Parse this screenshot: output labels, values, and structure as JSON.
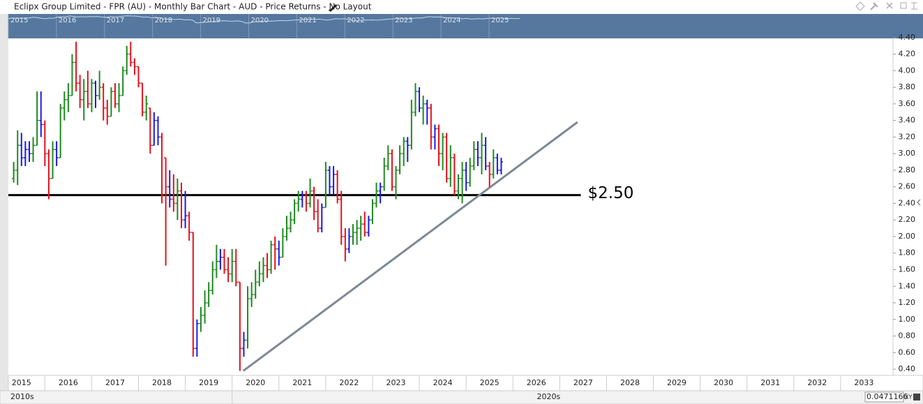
{
  "header": {
    "title": "Eclipx Group Limited - FPR (AU) - Monthly Bar Chart - AUD - Price Returns - No Layout"
  },
  "chart_data": {
    "type": "ohlc",
    "x": [
      2015.333,
      2015.417,
      2015.5,
      2015.583,
      2015.667,
      2015.75,
      2015.833,
      2015.917,
      2016,
      2016.083,
      2016.167,
      2016.25,
      2016.333,
      2016.417,
      2016.5,
      2016.583,
      2016.667,
      2016.75,
      2016.833,
      2016.917,
      2017,
      2017.083,
      2017.167,
      2017.25,
      2017.333,
      2017.417,
      2017.5,
      2017.583,
      2017.667,
      2017.75,
      2017.833,
      2017.917,
      2018,
      2018.083,
      2018.167,
      2018.25,
      2018.333,
      2018.417,
      2018.5,
      2018.583,
      2018.667,
      2018.75,
      2018.833,
      2018.917,
      2019,
      2019.083,
      2019.167,
      2019.25,
      2019.333,
      2019.417,
      2019.5,
      2019.583,
      2019.667,
      2019.75,
      2019.833,
      2019.917,
      2020,
      2020.083,
      2020.167,
      2020.25,
      2020.333,
      2020.417,
      2020.5,
      2020.583,
      2020.667,
      2020.75,
      2020.833,
      2020.917,
      2021,
      2021.083,
      2021.167,
      2021.25,
      2021.333,
      2021.417,
      2021.5,
      2021.583,
      2021.667,
      2021.75,
      2021.833,
      2021.917,
      2022,
      2022.083,
      2022.167,
      2022.25,
      2022.333,
      2022.417,
      2022.5,
      2022.583,
      2022.667,
      2022.75,
      2022.833,
      2022.917,
      2023,
      2023.083,
      2023.167,
      2023.25,
      2023.333,
      2023.417,
      2023.5,
      2023.583,
      2023.667,
      2023.75,
      2023.833,
      2023.917,
      2024,
      2024.083,
      2024.167,
      2024.25,
      2024.333,
      2024.417,
      2024.5,
      2024.583,
      2024.667,
      2024.75,
      2024.833,
      2024.917,
      2025,
      2025.083,
      2025.167,
      2025.25,
      2025.333,
      2025.417,
      2025.5,
      2025.583,
      2025.667,
      2025.75
    ],
    "ohlc": [
      [
        2.7,
        2.9,
        2.65,
        2.8
      ],
      [
        2.8,
        3.28,
        2.62,
        3.1
      ],
      [
        3.1,
        3.25,
        2.85,
        2.95
      ],
      [
        2.95,
        3.15,
        2.85,
        3.05
      ],
      [
        3.05,
        3.15,
        2.9,
        3.0
      ],
      [
        3.0,
        3.2,
        2.9,
        3.1
      ],
      [
        3.1,
        3.75,
        3.1,
        3.4
      ],
      [
        3.4,
        3.75,
        3.2,
        3.35
      ],
      [
        3.35,
        3.4,
        2.85,
        3.0
      ],
      [
        3.0,
        3.05,
        2.45,
        2.7
      ],
      [
        2.7,
        3.15,
        2.7,
        3.05
      ],
      [
        3.05,
        3.15,
        2.85,
        2.95
      ],
      [
        2.95,
        3.6,
        2.95,
        3.55
      ],
      [
        3.55,
        3.75,
        3.4,
        3.65
      ],
      [
        3.65,
        3.85,
        3.5,
        3.7
      ],
      [
        3.7,
        4.2,
        3.7,
        4.1
      ],
      [
        4.1,
        4.35,
        3.75,
        3.85
      ],
      [
        3.85,
        3.95,
        3.55,
        3.65
      ],
      [
        3.65,
        3.9,
        3.4,
        3.75
      ],
      [
        3.75,
        4.0,
        3.55,
        3.6
      ],
      [
        3.6,
        3.9,
        3.5,
        3.85
      ],
      [
        3.85,
        3.88,
        3.55,
        3.7
      ],
      [
        3.7,
        4.0,
        3.65,
        3.8
      ],
      [
        3.8,
        3.85,
        3.4,
        3.55
      ],
      [
        3.55,
        3.65,
        3.35,
        3.45
      ],
      [
        3.45,
        3.8,
        3.45,
        3.75
      ],
      [
        3.75,
        3.85,
        3.55,
        3.6
      ],
      [
        3.6,
        3.85,
        3.5,
        3.7
      ],
      [
        3.7,
        4.05,
        3.7,
        4.0
      ],
      [
        4.0,
        4.3,
        3.95,
        4.2
      ],
      [
        4.2,
        4.35,
        4.05,
        4.1
      ],
      [
        4.1,
        4.15,
        3.95,
        4.05
      ],
      [
        4.05,
        4.05,
        3.8,
        3.85
      ],
      [
        3.85,
        3.85,
        3.45,
        3.5
      ],
      [
        3.5,
        3.7,
        3.4,
        3.6
      ],
      [
        3.55,
        3.55,
        3.0,
        3.1
      ],
      [
        3.1,
        3.5,
        3.1,
        3.4
      ],
      [
        3.4,
        3.45,
        3.1,
        3.2
      ],
      [
        3.2,
        3.25,
        2.4,
        2.5
      ],
      [
        2.95,
        2.95,
        1.65,
        2.6
      ],
      [
        2.6,
        2.8,
        2.35,
        2.45
      ],
      [
        2.45,
        2.75,
        2.3,
        2.4
      ],
      [
        2.4,
        2.7,
        2.2,
        2.55
      ],
      [
        2.55,
        2.65,
        2.1,
        2.2
      ],
      [
        2.2,
        2.55,
        2.1,
        2.25
      ],
      [
        2.25,
        2.3,
        1.95,
        2.05
      ],
      [
        2.05,
        2.05,
        0.55,
        0.65
      ],
      [
        0.65,
        1.0,
        0.55,
        0.95
      ],
      [
        0.95,
        1.15,
        0.85,
        1.05
      ],
      [
        1.05,
        1.35,
        0.95,
        1.2
      ],
      [
        1.2,
        1.45,
        1.15,
        1.35
      ],
      [
        1.35,
        1.7,
        1.3,
        1.6
      ],
      [
        1.6,
        1.9,
        1.5,
        1.7
      ],
      [
        1.7,
        1.85,
        1.6,
        1.75
      ],
      [
        1.75,
        1.85,
        1.55,
        1.6
      ],
      [
        1.6,
        1.75,
        1.45,
        1.55
      ],
      [
        1.55,
        1.85,
        1.45,
        1.7
      ],
      [
        1.7,
        1.85,
        1.4,
        1.45
      ],
      [
        1.45,
        1.45,
        0.38,
        0.65
      ],
      [
        0.65,
        0.85,
        0.55,
        0.75
      ],
      [
        0.75,
        1.4,
        0.65,
        1.25
      ],
      [
        1.25,
        1.45,
        1.15,
        1.3
      ],
      [
        1.3,
        1.6,
        1.25,
        1.45
      ],
      [
        1.45,
        1.7,
        1.4,
        1.55
      ],
      [
        1.55,
        1.75,
        1.45,
        1.65
      ],
      [
        1.65,
        1.8,
        1.5,
        1.6
      ],
      [
        1.6,
        1.95,
        1.55,
        1.9
      ],
      [
        1.9,
        2.0,
        1.6,
        1.85
      ],
      [
        1.85,
        1.95,
        1.65,
        1.75
      ],
      [
        1.75,
        2.1,
        1.75,
        2.0
      ],
      [
        2.0,
        2.25,
        1.95,
        2.1
      ],
      [
        2.1,
        2.3,
        2.05,
        2.2
      ],
      [
        2.2,
        2.45,
        2.15,
        2.4
      ],
      [
        2.4,
        2.55,
        2.3,
        2.45
      ],
      [
        2.45,
        2.55,
        2.35,
        2.5
      ],
      [
        2.5,
        2.55,
        2.3,
        2.4
      ],
      [
        2.4,
        2.7,
        2.35,
        2.55
      ],
      [
        2.55,
        2.6,
        2.2,
        2.3
      ],
      [
        2.3,
        2.45,
        2.05,
        2.1
      ],
      [
        2.1,
        2.4,
        2.05,
        2.35
      ],
      [
        2.35,
        2.9,
        2.35,
        2.8
      ],
      [
        2.8,
        2.85,
        2.5,
        2.6
      ],
      [
        2.6,
        2.85,
        2.5,
        2.75
      ],
      [
        2.75,
        2.8,
        2.4,
        2.45
      ],
      [
        2.45,
        2.55,
        1.9,
        2.0
      ],
      [
        2.0,
        2.1,
        1.7,
        1.85
      ],
      [
        1.85,
        2.1,
        1.8,
        2.0
      ],
      [
        2.0,
        2.15,
        1.9,
        2.05
      ],
      [
        2.05,
        2.2,
        1.9,
        2.1
      ],
      [
        2.1,
        2.25,
        1.95,
        2.15
      ],
      [
        2.15,
        2.3,
        2.0,
        2.05
      ],
      [
        2.05,
        2.25,
        2.0,
        2.2
      ],
      [
        2.2,
        2.45,
        2.15,
        2.4
      ],
      [
        2.4,
        2.65,
        2.35,
        2.55
      ],
      [
        2.55,
        2.65,
        2.4,
        2.6
      ],
      [
        2.6,
        2.95,
        2.55,
        2.85
      ],
      [
        2.85,
        3.1,
        2.8,
        3.0
      ],
      [
        3.0,
        3.05,
        2.55,
        2.6
      ],
      [
        2.6,
        2.85,
        2.45,
        2.8
      ],
      [
        2.8,
        3.1,
        2.75,
        3.0
      ],
      [
        3.0,
        3.2,
        2.85,
        3.15
      ],
      [
        3.15,
        3.2,
        2.9,
        3.1
      ],
      [
        3.1,
        3.65,
        3.05,
        3.5
      ],
      [
        3.5,
        3.85,
        3.45,
        3.75
      ],
      [
        3.75,
        3.8,
        3.5,
        3.55
      ],
      [
        3.55,
        3.7,
        3.35,
        3.6
      ],
      [
        3.6,
        3.65,
        3.35,
        3.55
      ],
      [
        3.55,
        3.6,
        3.05,
        3.2
      ],
      [
        3.2,
        3.35,
        3.05,
        3.3
      ],
      [
        3.3,
        3.35,
        2.85,
        3.0
      ],
      [
        3.0,
        3.25,
        2.8,
        3.2
      ],
      [
        3.2,
        3.25,
        2.65,
        2.7
      ],
      [
        2.7,
        3.1,
        2.6,
        2.95
      ],
      [
        2.95,
        3.0,
        2.5,
        2.55
      ],
      [
        2.55,
        2.75,
        2.45,
        2.7
      ],
      [
        2.7,
        2.9,
        2.4,
        2.8
      ],
      [
        2.8,
        2.9,
        2.55,
        2.65
      ],
      [
        2.65,
        2.95,
        2.6,
        2.85
      ],
      [
        2.85,
        3.15,
        2.8,
        3.05
      ],
      [
        3.05,
        3.15,
        2.85,
        2.95
      ],
      [
        2.95,
        3.25,
        2.75,
        3.1
      ],
      [
        3.1,
        3.2,
        2.8,
        2.85
      ],
      [
        2.85,
        2.9,
        2.6,
        2.75
      ],
      [
        2.75,
        3.05,
        2.7,
        2.95
      ],
      [
        2.95,
        3.0,
        2.75,
        2.8
      ],
      [
        2.8,
        2.95,
        2.75,
        2.9
      ]
    ],
    "up_color": "#1f8a1f",
    "down_color": "#e3121b",
    "inside_color": "#1a1ae6",
    "xlim": [
      2015.22,
      2034.12
    ],
    "xticks": [
      2015,
      2016,
      2017,
      2018,
      2019,
      2020,
      2021,
      2022,
      2023,
      2024,
      2025,
      2026,
      2027,
      2028,
      2029,
      2030,
      2031,
      2032,
      2033
    ],
    "ylim": [
      0.325,
      4.39
    ],
    "yticks": [
      {
        "value": 0.4,
        "label": "0.40"
      },
      {
        "value": 0.6,
        "label": "0.60"
      },
      {
        "value": 0.8,
        "label": "0.80"
      },
      {
        "value": 1,
        "label": "1.00"
      },
      {
        "value": 1.2,
        "label": "1.20"
      },
      {
        "value": 1.4,
        "label": "1.40"
      },
      {
        "value": 1.6,
        "label": "1.60"
      },
      {
        "value": 1.8,
        "label": "1.80"
      },
      {
        "value": 2,
        "label": "2.00"
      },
      {
        "value": 2.2,
        "label": "2.20"
      },
      {
        "value": 2.4,
        "label": "2.40"
      },
      {
        "value": 2.6,
        "label": "2.60"
      },
      {
        "value": 2.8,
        "label": "2.80"
      },
      {
        "value": 3,
        "label": "3.00"
      },
      {
        "value": 3.2,
        "label": "3.20"
      },
      {
        "value": 3.4,
        "label": "3.40"
      },
      {
        "value": 3.6,
        "label": "3.60"
      },
      {
        "value": 3.8,
        "label": "3.80"
      },
      {
        "value": 4,
        "label": "4.00"
      },
      {
        "value": 4.2,
        "label": "4.20"
      },
      {
        "value": 4.4,
        "label": "4.40"
      }
    ],
    "grid": false,
    "hlines": [
      {
        "value": 2.5,
        "label": "$2.50",
        "x": [
          2015.22,
          2027.45
        ],
        "color": "#000000"
      }
    ],
    "trendlines": [
      {
        "x": [
          2020.24,
          2027.38
        ],
        "y": [
          0.38,
          3.38
        ],
        "color": "#7d8896"
      }
    ],
    "decades": [
      {
        "value": 2015.22,
        "label": "2010s"
      },
      {
        "value": 2020,
        "label": "2020s"
      }
    ],
    "navigator": {
      "labels": [
        "2015",
        "2016",
        "2017",
        "2018",
        "2019",
        "2020",
        "2021",
        "2022",
        "2023",
        "2024",
        "2025"
      ],
      "color": "#56789f"
    }
  },
  "footer": {
    "value_box": "0.0471166",
    "mode": "XY"
  }
}
